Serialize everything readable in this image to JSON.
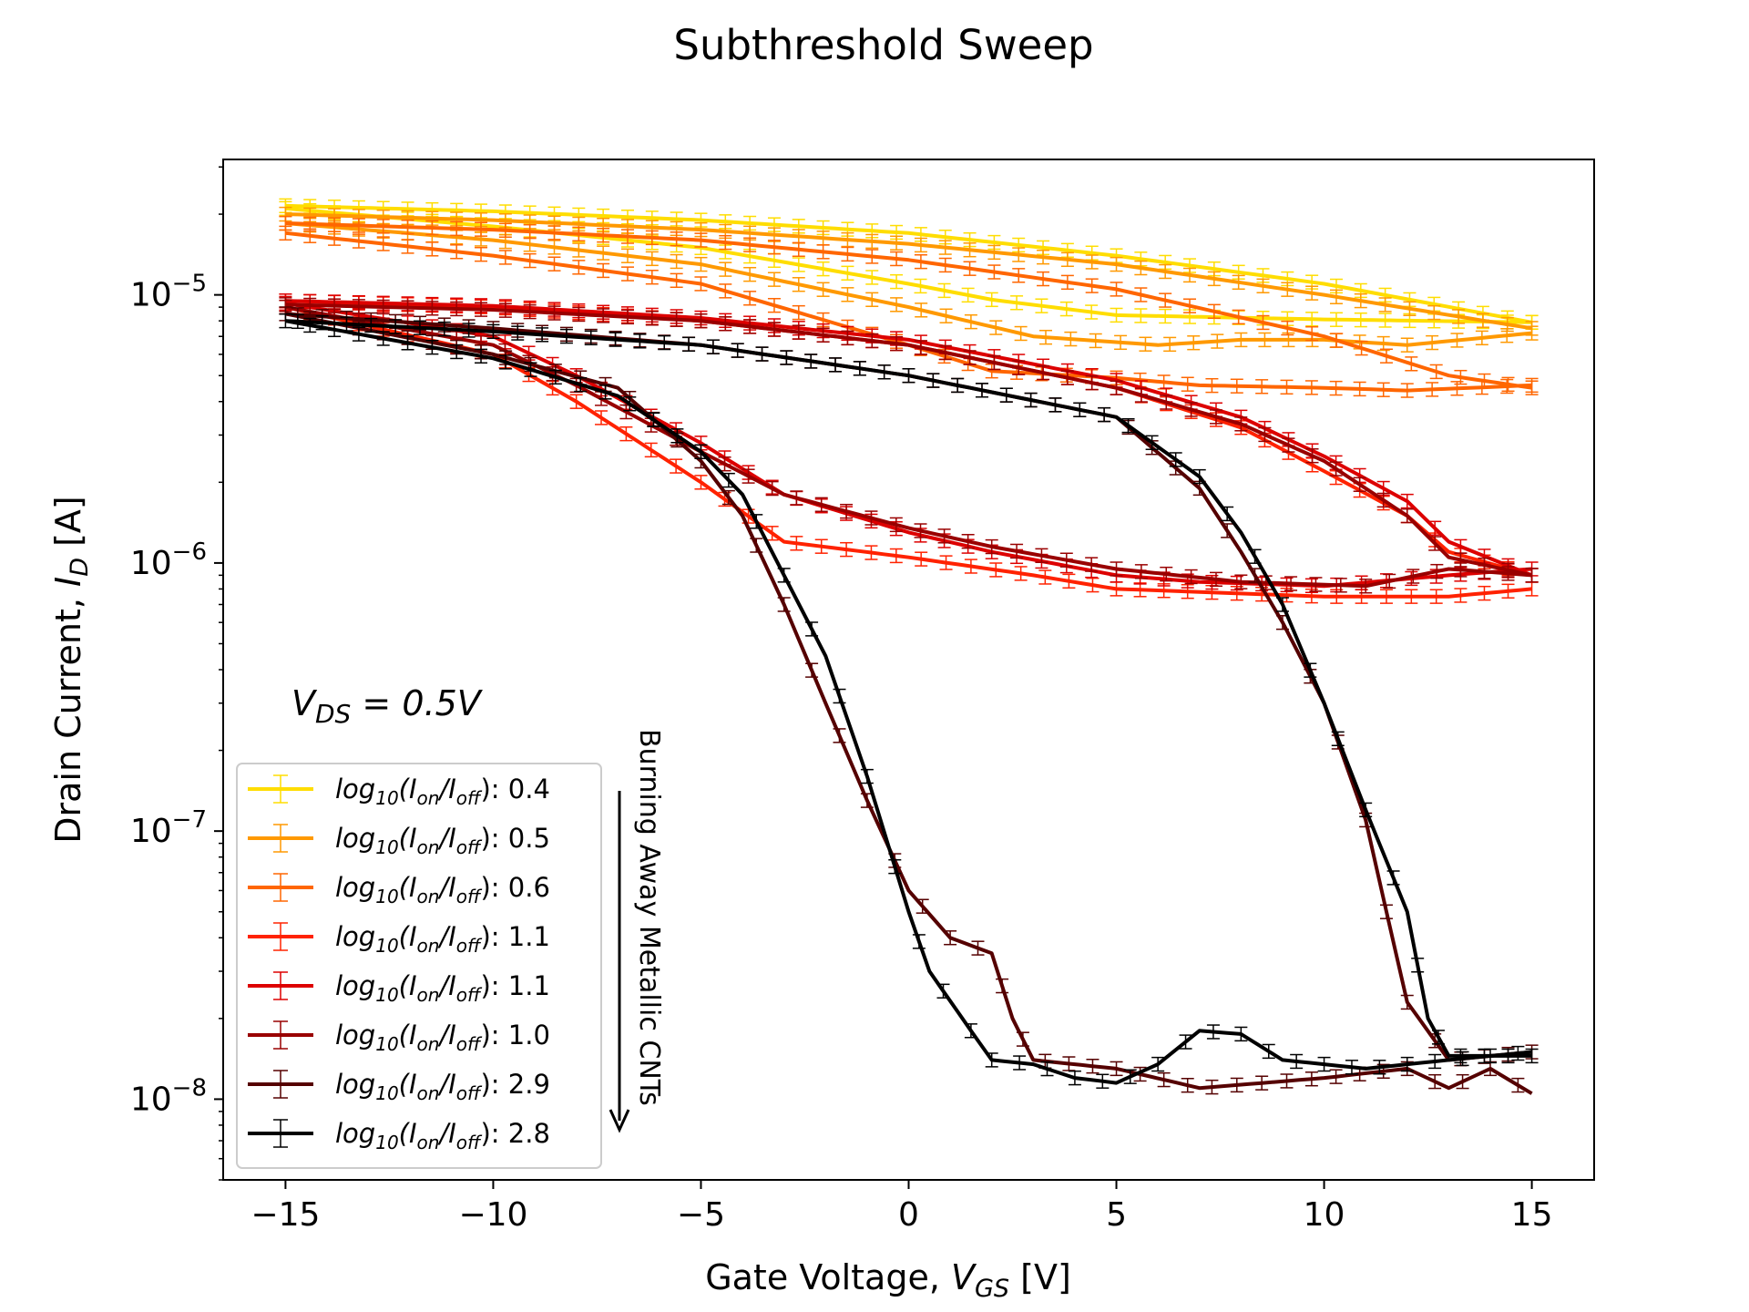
{
  "chart_data": {
    "type": "line",
    "title": "Subthreshold Sweep",
    "xlabel": {
      "prefix": "Gate Voltage, ",
      "sym": "V",
      "sub": "GS",
      "suffix": " [V]"
    },
    "ylabel": {
      "prefix": "Drain Current, ",
      "sym": "I",
      "sub": "D",
      "suffix": " [A]"
    },
    "xlim": [
      -16.5,
      16.5
    ],
    "ylim": [
      5e-09,
      3.2e-05
    ],
    "yscale": "log",
    "xticks": [
      -15,
      -10,
      -5,
      0,
      5,
      10,
      15
    ],
    "xtick_labels": [
      "−15",
      "−10",
      "−5",
      "0",
      "5",
      "10",
      "15"
    ],
    "yticks": [
      {
        "value": 1e-08,
        "base": "10",
        "exp": "−8"
      },
      {
        "value": 1e-07,
        "base": "10",
        "exp": "−7"
      },
      {
        "value": 1e-06,
        "base": "10",
        "exp": "−6"
      },
      {
        "value": 1e-05,
        "base": "10",
        "exp": "−5"
      }
    ],
    "grid": false,
    "legend_position": "lower-left",
    "annotation": {
      "sym": "V",
      "sub": "DS",
      "rest": " = 0.5V"
    },
    "side_annotation": "Burning Away Metallic CNTs",
    "series": [
      {
        "name": "log10(Ion/Ioff): 0.4",
        "ratio": "0.4",
        "color": "#ffdd00",
        "forward": [
          [
            -15,
            2.15e-05
          ],
          [
            -10,
            2.05e-05
          ],
          [
            -5,
            1.9e-05
          ],
          [
            0,
            1.7e-05
          ],
          [
            5,
            1.4e-05
          ],
          [
            10,
            1.1e-05
          ],
          [
            15,
            7.9e-06
          ]
        ],
        "reverse": [
          [
            15,
            7.9e-06
          ],
          [
            10,
            8.1e-06
          ],
          [
            5,
            8.4e-06
          ],
          [
            2,
            9.6e-06
          ],
          [
            0,
            1.1e-05
          ],
          [
            -5,
            1.5e-05
          ],
          [
            -10,
            1.8e-05
          ],
          [
            -15,
            2.1e-05
          ]
        ]
      },
      {
        "name": "log10(Ion/Ioff): 0.5",
        "ratio": "0.5",
        "color": "#ff9900",
        "forward": [
          [
            -15,
            2e-05
          ],
          [
            -10,
            1.9e-05
          ],
          [
            -5,
            1.75e-05
          ],
          [
            0,
            1.55e-05
          ],
          [
            5,
            1.3e-05
          ],
          [
            10,
            1e-05
          ],
          [
            15,
            7.5e-06
          ]
        ],
        "reverse": [
          [
            15,
            7.2e-06
          ],
          [
            12,
            6.5e-06
          ],
          [
            10,
            6.8e-06
          ],
          [
            8,
            6.8e-06
          ],
          [
            6,
            6.5e-06
          ],
          [
            3,
            7e-06
          ],
          [
            0,
            9e-06
          ],
          [
            -5,
            1.3e-05
          ],
          [
            -10,
            1.6e-05
          ],
          [
            -15,
            1.85e-05
          ]
        ]
      },
      {
        "name": "log10(Ion/Ioff): 0.6",
        "ratio": "0.6",
        "color": "#ff6600",
        "forward": [
          [
            -15,
            1.85e-05
          ],
          [
            -10,
            1.75e-05
          ],
          [
            -5,
            1.6e-05
          ],
          [
            0,
            1.35e-05
          ],
          [
            5,
            1.05e-05
          ],
          [
            10,
            7e-06
          ],
          [
            13,
            5e-06
          ],
          [
            15,
            4.5e-06
          ]
        ],
        "reverse": [
          [
            15,
            4.6e-06
          ],
          [
            12,
            4.4e-06
          ],
          [
            10,
            4.5e-06
          ],
          [
            7,
            4.6e-06
          ],
          [
            5,
            4.9e-06
          ],
          [
            2,
            5.2e-06
          ],
          [
            0,
            6.5e-06
          ],
          [
            -5,
            1.1e-05
          ],
          [
            -10,
            1.4e-05
          ],
          [
            -15,
            1.7e-05
          ]
        ]
      },
      {
        "name": "log10(Ion/Ioff): 1.1",
        "ratio": "1.1",
        "color": "#ff2200",
        "forward": [
          [
            -15,
            9.5e-06
          ],
          [
            -10,
            9e-06
          ],
          [
            -5,
            8e-06
          ],
          [
            0,
            6.5e-06
          ],
          [
            5,
            4.5e-06
          ],
          [
            8,
            3.2e-06
          ],
          [
            10,
            2.2e-06
          ],
          [
            12,
            1.5e-06
          ],
          [
            13,
            1.1e-06
          ],
          [
            15,
            9e-07
          ]
        ],
        "reverse": [
          [
            15,
            8e-07
          ],
          [
            13,
            7.5e-07
          ],
          [
            10,
            7.5e-07
          ],
          [
            7,
            7.8e-07
          ],
          [
            5,
            8e-07
          ],
          [
            3,
            9e-07
          ],
          [
            0,
            1.05e-06
          ],
          [
            -3,
            1.2e-06
          ],
          [
            -5,
            2e-06
          ],
          [
            -8,
            4e-06
          ],
          [
            -10,
            6e-06
          ],
          [
            -15,
            9e-06
          ]
        ]
      },
      {
        "name": "log10(Ion/Ioff): 1.1",
        "ratio": "1.1",
        "color": "#dd0000",
        "forward": [
          [
            -15,
            9.5e-06
          ],
          [
            -10,
            9.1e-06
          ],
          [
            -5,
            8.2e-06
          ],
          [
            0,
            6.8e-06
          ],
          [
            5,
            4.8e-06
          ],
          [
            8,
            3.5e-06
          ],
          [
            10,
            2.5e-06
          ],
          [
            12,
            1.7e-06
          ],
          [
            13,
            1.2e-06
          ],
          [
            15,
            9e-07
          ]
        ],
        "reverse": [
          [
            15,
            9.5e-07
          ],
          [
            13,
            9e-07
          ],
          [
            10,
            8.2e-07
          ],
          [
            7,
            8.5e-07
          ],
          [
            5,
            9e-07
          ],
          [
            2,
            1.1e-06
          ],
          [
            0,
            1.3e-06
          ],
          [
            -3,
            1.8e-06
          ],
          [
            -5,
            2.8e-06
          ],
          [
            -8,
            5e-06
          ],
          [
            -10,
            7e-06
          ],
          [
            -15,
            9.3e-06
          ]
        ]
      },
      {
        "name": "log10(Ion/Ioff): 1.0",
        "ratio": "1.0",
        "color": "#990000",
        "forward": [
          [
            -15,
            9.2e-06
          ],
          [
            -10,
            8.8e-06
          ],
          [
            -5,
            8e-06
          ],
          [
            0,
            6.5e-06
          ],
          [
            5,
            4.5e-06
          ],
          [
            8,
            3.3e-06
          ],
          [
            10,
            2.4e-06
          ],
          [
            12,
            1.5e-06
          ],
          [
            13,
            1.05e-06
          ],
          [
            15,
            9e-07
          ]
        ],
        "reverse": [
          [
            15,
            9e-07
          ],
          [
            13,
            9.5e-07
          ],
          [
            11,
            8.2e-07
          ],
          [
            8,
            8.5e-07
          ],
          [
            5,
            9.5e-07
          ],
          [
            2,
            1.15e-06
          ],
          [
            0,
            1.35e-06
          ],
          [
            -3,
            1.8e-06
          ],
          [
            -5,
            2.6e-06
          ],
          [
            -8,
            4.6e-06
          ],
          [
            -10,
            6.5e-06
          ],
          [
            -15,
            9e-06
          ]
        ]
      },
      {
        "name": "log10(Ion/Ioff): 2.9",
        "ratio": "2.9",
        "color": "#550000",
        "forward": [
          [
            -15,
            8.5e-06
          ],
          [
            -10,
            6e-06
          ],
          [
            -7,
            4.5e-06
          ],
          [
            -5,
            2.4e-06
          ],
          [
            -4,
            1.5e-06
          ],
          [
            -3,
            7e-07
          ],
          [
            -2,
            3e-07
          ],
          [
            -1,
            1.3e-07
          ],
          [
            0,
            6e-08
          ],
          [
            1,
            4e-08
          ],
          [
            2,
            3.5e-08
          ],
          [
            2.5,
            2e-08
          ],
          [
            3,
            1.4e-08
          ],
          [
            5,
            1.3e-08
          ],
          [
            7,
            1.1e-08
          ],
          [
            10,
            1.2e-08
          ],
          [
            12,
            1.3e-08
          ],
          [
            13,
            1.1e-08
          ],
          [
            14,
            1.3e-08
          ],
          [
            15,
            1.05e-08
          ]
        ],
        "reverse": [
          [
            15,
            1.5e-08
          ],
          [
            13,
            1.4e-08
          ],
          [
            12,
            2.3e-08
          ],
          [
            11.5,
            5e-08
          ],
          [
            11,
            1.1e-07
          ],
          [
            10,
            3e-07
          ],
          [
            9,
            6e-07
          ],
          [
            8,
            1.1e-06
          ],
          [
            7,
            1.9e-06
          ],
          [
            5,
            3.5e-06
          ],
          [
            0,
            5e-06
          ],
          [
            -5,
            6.5e-06
          ],
          [
            -10,
            7.5e-06
          ],
          [
            -15,
            8.5e-06
          ]
        ]
      },
      {
        "name": "log10(Ion/Ioff): 2.8",
        "ratio": "2.8",
        "color": "#000000",
        "forward": [
          [
            -15,
            8e-06
          ],
          [
            -10,
            5.8e-06
          ],
          [
            -7,
            4.2e-06
          ],
          [
            -5,
            2.6e-06
          ],
          [
            -4,
            1.8e-06
          ],
          [
            -3,
            9e-07
          ],
          [
            -2,
            4.5e-07
          ],
          [
            -1,
            1.6e-07
          ],
          [
            0,
            5e-08
          ],
          [
            0.5,
            3e-08
          ],
          [
            1.5,
            1.8e-08
          ],
          [
            2,
            1.4e-08
          ],
          [
            3,
            1.35e-08
          ],
          [
            4,
            1.2e-08
          ],
          [
            5,
            1.15e-08
          ],
          [
            6,
            1.35e-08
          ],
          [
            7,
            1.8e-08
          ],
          [
            8,
            1.75e-08
          ],
          [
            9,
            1.4e-08
          ],
          [
            10,
            1.35e-08
          ],
          [
            11,
            1.3e-08
          ],
          [
            12,
            1.35e-08
          ],
          [
            13,
            1.4e-08
          ],
          [
            14,
            1.45e-08
          ],
          [
            15,
            1.5e-08
          ]
        ],
        "reverse": [
          [
            15,
            1.45e-08
          ],
          [
            13,
            1.45e-08
          ],
          [
            12.5,
            2e-08
          ],
          [
            12,
            5e-08
          ],
          [
            11,
            1.2e-07
          ],
          [
            10,
            3e-07
          ],
          [
            9,
            7e-07
          ],
          [
            8,
            1.3e-06
          ],
          [
            7,
            2.1e-06
          ],
          [
            5,
            3.5e-06
          ],
          [
            0,
            5e-06
          ],
          [
            -5,
            6.5e-06
          ],
          [
            -10,
            7.3e-06
          ],
          [
            -15,
            8e-06
          ]
        ]
      }
    ]
  }
}
